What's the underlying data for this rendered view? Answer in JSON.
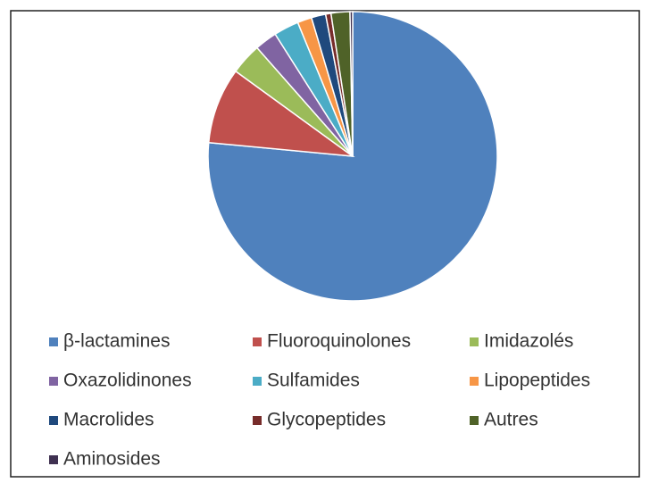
{
  "chart_data": {
    "type": "pie",
    "categories": [
      "β-lactamines",
      "Fluoroquinolones",
      "Imidazolés",
      "Oxazolidinones",
      "Sulfamides",
      "Lipopeptides",
      "Macrolides",
      "Glycopeptides",
      "Autres",
      "Aminosides"
    ],
    "values": [
      76.5,
      8.5,
      3.5,
      2.5,
      2.8,
      1.6,
      1.6,
      0.6,
      2.1,
      0.3
    ],
    "colors": [
      "#4f81bd",
      "#c0504d",
      "#9bbb59",
      "#8064a2",
      "#4bacc6",
      "#f79646",
      "#1f497d",
      "#772c2a",
      "#4f6228",
      "#3f3151"
    ],
    "legend": "bottom"
  }
}
